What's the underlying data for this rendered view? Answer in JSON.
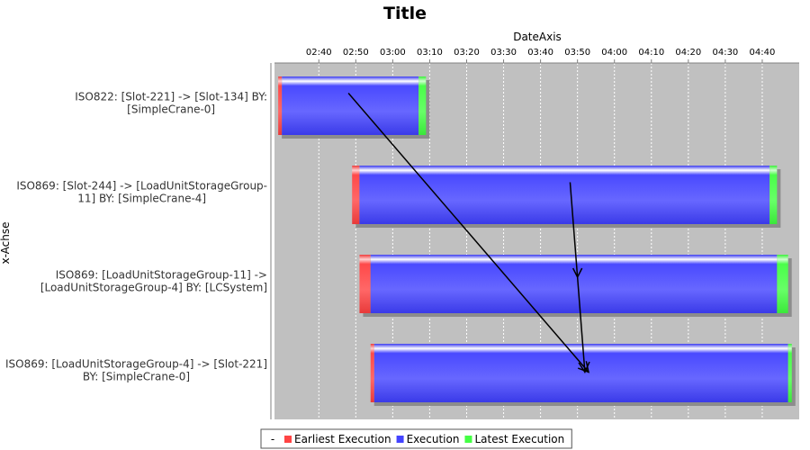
{
  "chart_data": {
    "type": "bar",
    "orientation": "horizontal",
    "stacked": true,
    "title": "Title",
    "xlabel": "x-Achse",
    "date_axis_label": "DateAxis",
    "date_axis_position": "top",
    "grid": true,
    "legend_placement": "bottom",
    "time_range": [
      "02:28",
      "04:50"
    ],
    "time_ticks": [
      "02:40",
      "02:50",
      "03:00",
      "03:10",
      "03:20",
      "03:30",
      "03:40",
      "03:50",
      "04:00",
      "04:10",
      "04:20",
      "04:30",
      "04:40"
    ],
    "categories": [
      [
        "ISO822: [Slot-221] -> [Slot-134] BY:",
        "[SimpleCrane-0]"
      ],
      [
        "ISO869: [Slot-244] -> [LoadUnitStorageGroup-",
        "11] BY: [SimpleCrane-4]"
      ],
      [
        "ISO869: [LoadUnitStorageGroup-11] ->",
        "[LoadUnitStorageGroup-4] BY: [LCSystem]"
      ],
      [
        "ISO869: [LoadUnitStorageGroup-4] -> [Slot-221]",
        "BY: [SimpleCrane-0]"
      ]
    ],
    "series": [
      {
        "name": "Earliest Execution",
        "color": "#ff4444",
        "intervals": [
          [
            "02:29",
            "02:30"
          ],
          [
            "02:49",
            "02:51"
          ],
          [
            "02:51",
            "02:54"
          ],
          [
            "02:54",
            "02:55"
          ]
        ]
      },
      {
        "name": "Execution",
        "color": "#4444ff",
        "intervals": [
          [
            "02:30",
            "03:07"
          ],
          [
            "02:51",
            "04:42"
          ],
          [
            "02:54",
            "04:44"
          ],
          [
            "02:55",
            "04:47"
          ]
        ]
      },
      {
        "name": "Latest Execution",
        "color": "#44ff44",
        "intervals": [
          [
            "03:07",
            "03:09"
          ],
          [
            "04:42",
            "04:44"
          ],
          [
            "04:44",
            "04:47"
          ],
          [
            "04:47",
            "04:48"
          ]
        ]
      }
    ],
    "legend_prefix": "-",
    "arrows": [
      {
        "from": [
          "02:48",
          0
        ],
        "to": [
          "03:53",
          3
        ]
      },
      {
        "from": [
          "03:48",
          1
        ],
        "to": [
          "03:52",
          3
        ]
      }
    ],
    "colors": {
      "plot_background": "#c0c0c0",
      "gridline": "#ffffff"
    }
  }
}
